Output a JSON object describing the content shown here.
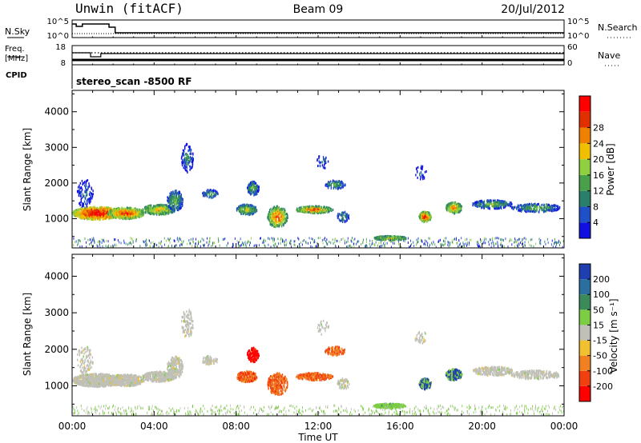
{
  "header": {
    "radar": "Unwin (fitACF)",
    "beam": "Beam 09",
    "date": "20/Jul/2012"
  },
  "top_panels": {
    "nsky_label": "N.Sky",
    "nsky_ticks": [
      "10^5",
      "10^0"
    ],
    "nsearch_label": "N.Search",
    "nsearch_ticks": [
      "10^5",
      "10^0"
    ],
    "freq_label_1": "Freq.",
    "freq_label_2": "[MHz]",
    "freq_ticks": [
      "18",
      "8"
    ],
    "nave_label": "Nave",
    "nave_ticks": [
      "60",
      "0"
    ],
    "cpid_label": "CPID",
    "cpid_value": "stereo_scan -8500 RF"
  },
  "chart_data": [
    {
      "type": "heatmap",
      "name": "power",
      "ylabel": "Slant Range [km]",
      "ylim": [
        180,
        4600
      ],
      "yticks": [
        "1000",
        "2000",
        "3000",
        "4000"
      ],
      "xlim_hours": [
        0,
        24
      ],
      "colorbar": {
        "label": "Power [dB]",
        "ticks": [
          "4",
          "8",
          "12",
          "16",
          "20",
          "24",
          "28"
        ],
        "colors": [
          "#1010e0",
          "#2050c8",
          "#2a7f6a",
          "#4aa04a",
          "#8fd040",
          "#f0c000",
          "#f08000",
          "#e03000",
          "#ff0000"
        ]
      }
    },
    {
      "type": "heatmap",
      "name": "velocity",
      "ylabel": "Slant Range [km]",
      "ylim": [
        180,
        4600
      ],
      "yticks": [
        "1000",
        "2000",
        "3000",
        "4000"
      ],
      "xlim_hours": [
        0,
        24
      ],
      "xticks": [
        "00:00",
        "04:00",
        "08:00",
        "12:00",
        "16:00",
        "20:00",
        "00:00"
      ],
      "xlabel": "Time UT",
      "colorbar": {
        "label": "Velocity [m s⁻¹]",
        "ticks": [
          "200",
          "100",
          "50",
          "15",
          "-15",
          "-50",
          "-100",
          "-200"
        ],
        "colors": [
          "#1f3fb0",
          "#2a6fa0",
          "#3a8a5a",
          "#7ccc44",
          "#c0c0b8",
          "#f0c030",
          "#f08020",
          "#f04010",
          "#ff0000"
        ]
      }
    }
  ]
}
